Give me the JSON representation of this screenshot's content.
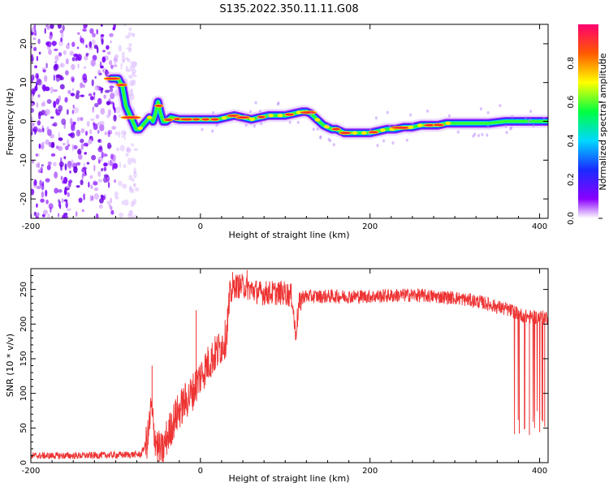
{
  "chart_data": [
    {
      "type": "heatmap",
      "title": "S135.2022.350.11.11.G08",
      "xlabel": "Height of straight line (km)",
      "ylabel": "Frequency (Hz)",
      "xlim": [
        -200,
        410
      ],
      "ylim": [
        -25,
        25
      ],
      "xticks": [
        -200,
        0,
        200,
        400
      ],
      "yticks": [
        -20,
        -10,
        0,
        10,
        20
      ],
      "ytick_labels": [
        "-20",
        "-10",
        "0",
        "10",
        "20"
      ],
      "colorbar": {
        "label": "Normalized spectral amplitude",
        "range": [
          0,
          1
        ],
        "ticks": [
          0,
          0.2,
          0.4,
          0.6,
          0.8
        ],
        "tick_labels": [
          "0.0",
          "0.2",
          "0.4",
          "0.6",
          "0.8"
        ]
      },
      "ridge": {
        "x": [
          -105,
          -97,
          -92,
          -88,
          -84,
          -80,
          -76,
          -72,
          -68,
          -64,
          -60,
          -56,
          -53,
          -50,
          -47,
          -44,
          -40,
          -35,
          -25,
          -10,
          0,
          10,
          20,
          30,
          40,
          50,
          60,
          70,
          80,
          90,
          100,
          110,
          120,
          125,
          130,
          135,
          140,
          145,
          150,
          155,
          160,
          165,
          170,
          180,
          190,
          200,
          210,
          220,
          230,
          240,
          250,
          260,
          270,
          280,
          290,
          300,
          320,
          340,
          360,
          380,
          400,
          410
        ],
        "y": [
          11,
          11,
          9,
          4,
          2,
          0,
          -2,
          -2,
          -1,
          0,
          1,
          0,
          2,
          5,
          2,
          0,
          0,
          1,
          0.5,
          0.5,
          0.5,
          0.5,
          0.5,
          1,
          1.5,
          1,
          0.5,
          1,
          1.5,
          1.5,
          1.5,
          2,
          2.5,
          2.5,
          2,
          1,
          0,
          -1,
          -1.5,
          -2,
          -2,
          -2.5,
          -3,
          -3,
          -3,
          -3,
          -2.5,
          -2,
          -2,
          -1.5,
          -1.5,
          -1,
          -1,
          -1,
          -0.5,
          -0.5,
          -0.5,
          -0.5,
          0,
          0,
          0,
          0
        ]
      }
    },
    {
      "type": "line",
      "xlabel": "Height of straight line (km)",
      "ylabel": "SNR (10 * v/v)",
      "xlim": [
        -200,
        410
      ],
      "ylim": [
        0,
        280
      ],
      "xticks": [
        -200,
        0,
        200,
        400
      ],
      "yticks": [
        0,
        50,
        100,
        150,
        200,
        250
      ],
      "color": "#ee3333",
      "trend": {
        "x": [
          -200,
          -150,
          -100,
          -70,
          -62,
          -58,
          -55,
          -50,
          -45,
          -40,
          -30,
          -20,
          -10,
          0,
          10,
          20,
          30,
          35,
          40,
          50,
          60,
          70,
          80,
          90,
          100,
          108,
          112,
          116,
          120,
          150,
          200,
          250,
          300,
          330,
          350,
          370,
          380,
          390,
          400,
          410
        ],
        "y": [
          10,
          10,
          11,
          12,
          35,
          80,
          45,
          20,
          15,
          35,
          65,
          85,
          100,
          125,
          145,
          160,
          180,
          240,
          255,
          255,
          250,
          245,
          245,
          245,
          245,
          240,
          185,
          225,
          240,
          240,
          240,
          242,
          238,
          232,
          225,
          218,
          212,
          210,
          210,
          210
        ]
      },
      "spikes": [
        {
          "x": -57,
          "y": 140
        },
        {
          "x": -5,
          "y": 220
        },
        {
          "x": 38,
          "y": 275
        },
        {
          "x": 55,
          "y": 278
        },
        {
          "x": 376,
          "y": 42
        },
        {
          "x": 382,
          "y": 48
        },
        {
          "x": 388,
          "y": 40
        },
        {
          "x": 394,
          "y": 50
        },
        {
          "x": 400,
          "y": 44
        },
        {
          "x": 406,
          "y": 52
        }
      ]
    }
  ]
}
